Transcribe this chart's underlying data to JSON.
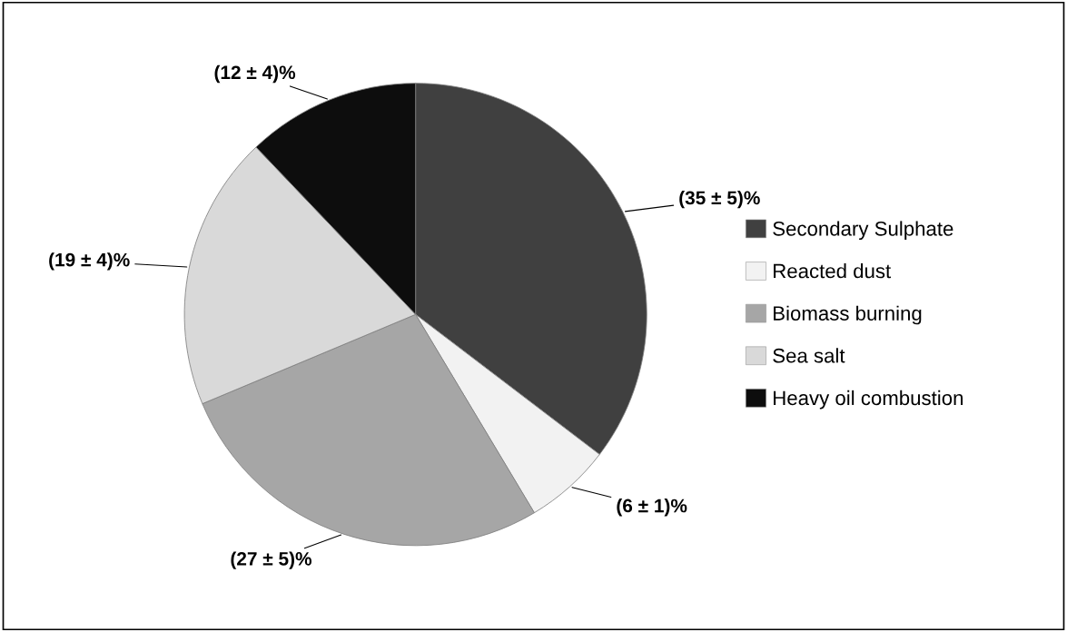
{
  "chart_data": {
    "type": "pie",
    "categories": [
      "Secondary Sulphate",
      "Reacted dust",
      "Biomass burning",
      "Sea salt",
      "Heavy oil combustion"
    ],
    "values": [
      35,
      6,
      27,
      19,
      12
    ],
    "value_labels": [
      "(35 ± 5)%",
      "(6 ± 1)%",
      "(27 ± 5)%",
      "(19 ± 4)%",
      "(12 ± 4)%"
    ],
    "colors": [
      "#404040",
      "#f2f2f2",
      "#a6a6a6",
      "#d9d9d9",
      "#0d0d0d"
    ],
    "legend": "right"
  }
}
